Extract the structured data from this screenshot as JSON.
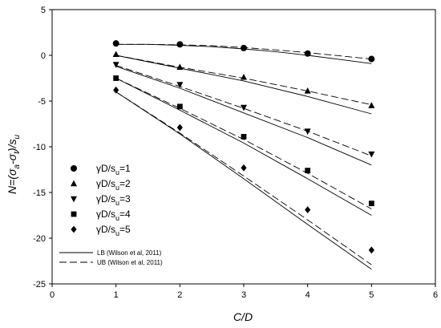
{
  "chart_data": {
    "type": "scatter",
    "xlabel": "C/D",
    "ylabel": "N=(σa-σt)/su",
    "xlim": [
      0,
      6
    ],
    "ylim": [
      -25,
      5
    ],
    "xticks": [
      0,
      1,
      2,
      3,
      4,
      5,
      6
    ],
    "yticks": [
      5,
      0,
      -5,
      -10,
      -15,
      -20,
      -25
    ],
    "xtick_labels": [
      "0",
      "1",
      "2",
      "3",
      "4",
      "5",
      "6"
    ],
    "ytick_labels": [
      "5",
      "0",
      "-5",
      "-10",
      "-15",
      "-20",
      "-25"
    ],
    "grid": false,
    "legend_position": "left",
    "series": [
      {
        "name": "γD/su=1",
        "marker": "circle",
        "x": [
          1,
          2,
          3,
          4,
          5
        ],
        "y": [
          1.3,
          1.2,
          0.8,
          0.2,
          -0.4
        ]
      },
      {
        "name": "γD/su=2",
        "marker": "triangle-up",
        "x": [
          1,
          2,
          3,
          4,
          5
        ],
        "y": [
          0.1,
          -1.3,
          -2.4,
          -3.9,
          -5.5
        ]
      },
      {
        "name": "γD/su=3",
        "marker": "triangle-down",
        "x": [
          1,
          2,
          3,
          4,
          5
        ],
        "y": [
          -1.0,
          -3.2,
          -5.7,
          -8.3,
          -10.8
        ]
      },
      {
        "name": "γD/su=4",
        "marker": "square",
        "x": [
          1,
          2,
          3,
          4,
          5
        ],
        "y": [
          -2.5,
          -5.6,
          -8.9,
          -12.6,
          -16.2
        ]
      },
      {
        "name": "γD/su=5",
        "marker": "diamond",
        "x": [
          1,
          2,
          3,
          4,
          5
        ],
        "y": [
          -3.8,
          -7.9,
          -12.3,
          -16.9,
          -21.3
        ]
      }
    ],
    "lines": [
      {
        "name": "LB (Wilson et al, 2011)",
        "style": "solid",
        "curves": [
          {
            "x": [
              1,
              1.5,
              2,
              2.5,
              3,
              3.5,
              4,
              4.5,
              5
            ],
            "y": [
              1.2,
              1.2,
              1.1,
              0.95,
              0.7,
              0.4,
              0.0,
              -0.45,
              -0.9
            ]
          },
          {
            "x": [
              1,
              2,
              3,
              4,
              5
            ],
            "y": [
              0.0,
              -1.4,
              -2.8,
              -4.5,
              -6.4
            ]
          },
          {
            "x": [
              1,
              2,
              3,
              4,
              5
            ],
            "y": [
              -1.2,
              -3.6,
              -6.3,
              -9.0,
              -12.0
            ]
          },
          {
            "x": [
              1,
              2,
              3,
              4,
              5
            ],
            "y": [
              -2.5,
              -6.0,
              -9.6,
              -13.5,
              -17.5
            ]
          },
          {
            "x": [
              1,
              2,
              3,
              4,
              5
            ],
            "y": [
              -4.0,
              -8.6,
              -13.5,
              -18.5,
              -23.4
            ]
          }
        ]
      },
      {
        "name": "UB (Wilson et al, 2011)",
        "style": "dashed",
        "curves": [
          {
            "x": [
              1,
              1.5,
              2,
              2.5,
              3,
              3.5,
              4,
              4.5,
              5
            ],
            "y": [
              1.2,
              1.2,
              1.15,
              1.05,
              0.85,
              0.6,
              0.3,
              -0.05,
              -0.4
            ]
          },
          {
            "x": [
              1,
              2,
              3,
              4,
              5
            ],
            "y": [
              0.0,
              -1.3,
              -2.5,
              -3.9,
              -5.4
            ]
          },
          {
            "x": [
              1,
              2,
              3,
              4,
              5
            ],
            "y": [
              -1.1,
              -3.4,
              -5.8,
              -8.3,
              -11.0
            ]
          },
          {
            "x": [
              1,
              2,
              3,
              4,
              5
            ],
            "y": [
              -2.5,
              -5.8,
              -9.2,
              -12.9,
              -16.8
            ]
          },
          {
            "x": [
              1,
              2,
              3,
              4,
              5
            ],
            "y": [
              -4.0,
              -8.5,
              -13.2,
              -18.0,
              -22.9
            ]
          }
        ]
      }
    ]
  }
}
